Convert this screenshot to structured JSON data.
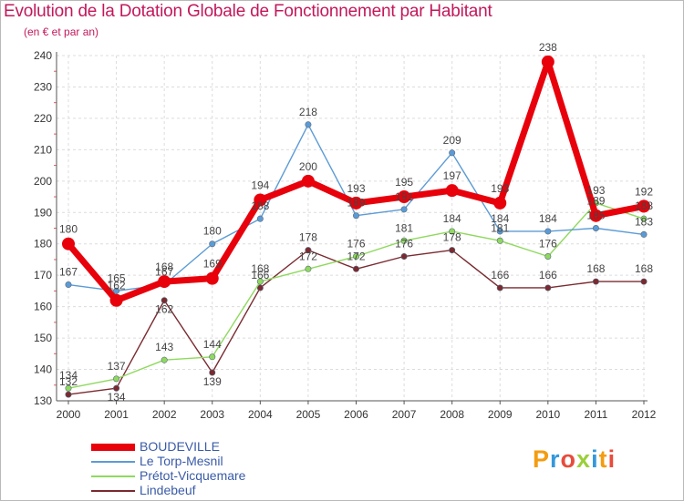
{
  "chart_data": {
    "type": "line",
    "title": "Evolution de la Dotation Globale de Fonctionnement par Habitant",
    "subtitle": "(en € et par an)",
    "xlabel": "",
    "ylabel": "",
    "categories": [
      "2000",
      "2001",
      "2002",
      "2003",
      "2004",
      "2005",
      "2006",
      "2007",
      "2008",
      "2009",
      "2010",
      "2011",
      "2012"
    ],
    "ylim": [
      130,
      240
    ],
    "yticks": [
      130,
      140,
      150,
      160,
      170,
      180,
      190,
      200,
      210,
      220,
      230,
      240
    ],
    "grid": true,
    "legend_position": "bottom-left",
    "series": [
      {
        "name": "BOUDEVILLE",
        "color": "#e8000b",
        "values": [
          180,
          162,
          168,
          169,
          194,
          200,
          193,
          195,
          197,
          193,
          238,
          189,
          192
        ],
        "labels": [
          "180",
          "162",
          "168",
          "169",
          "194",
          "200",
          "193",
          "195",
          "197",
          "193",
          "238",
          "189",
          "192"
        ]
      },
      {
        "name": "Le Torp-Mesnil",
        "color": "#5b9bd5",
        "values": [
          167,
          165,
          167,
          180,
          188,
          218,
          189,
          191,
          209,
          184,
          184,
          185,
          183
        ],
        "labels": [
          "167",
          "165",
          "167",
          "180",
          "188",
          "218",
          "189",
          "191",
          "209",
          "184",
          "184",
          "185",
          "183"
        ]
      },
      {
        "name": "Prétot-Vicquemare",
        "color": "#8fd95e",
        "values": [
          134,
          137,
          143,
          144,
          168,
          172,
          176,
          181,
          184,
          181,
          176,
          193,
          188
        ],
        "labels": [
          "134",
          "137",
          "143",
          "144",
          "168",
          "172",
          "176",
          "181",
          "184",
          "181",
          "176",
          "193",
          "188"
        ]
      },
      {
        "name": "Lindebeuf",
        "color": "#7a2a30",
        "values": [
          132,
          134,
          162,
          139,
          166,
          178,
          172,
          176,
          178,
          166,
          166,
          168,
          168
        ],
        "labels": [
          "132",
          "134",
          "162",
          "139",
          "166",
          "178",
          "172",
          "176",
          "178",
          "166",
          "166",
          "168",
          "168"
        ]
      }
    ]
  },
  "logo": {
    "text": "Proxiti",
    "letters": [
      "P",
      "r",
      "o",
      "x",
      "i",
      "t",
      "i"
    ],
    "colors": [
      "#f39c12",
      "#3498db",
      "#e74c3c",
      "#9bcf3a",
      "#3498db",
      "#f39c12",
      "#e74c3c"
    ]
  }
}
